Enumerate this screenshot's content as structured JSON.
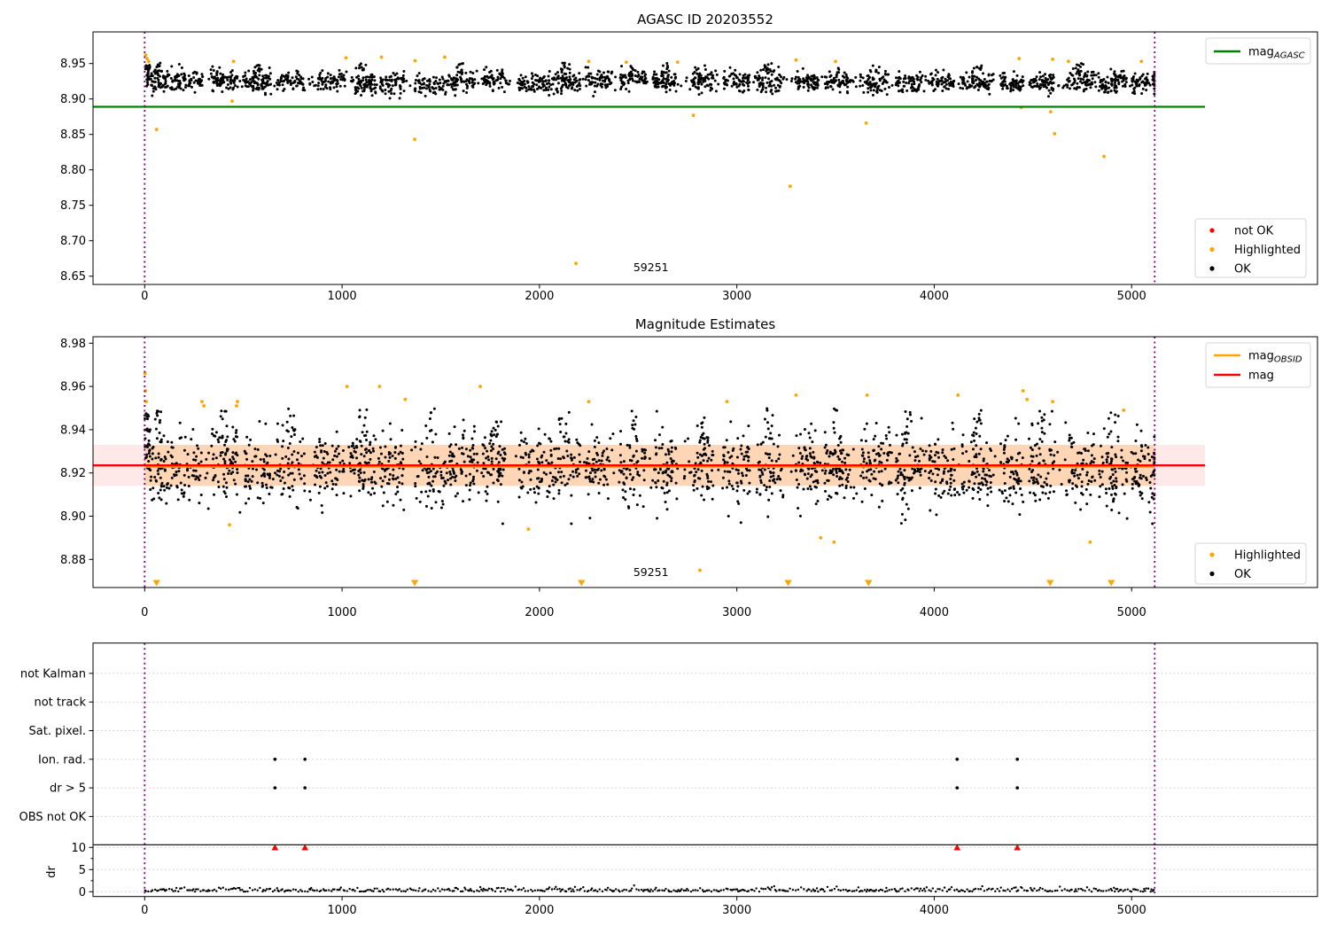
{
  "figure": {
    "titles": {
      "top": "AGASC ID 20203552",
      "middle": "Magnitude Estimates"
    }
  },
  "colors": {
    "ok": "#000000",
    "highlighted": "#ffa500",
    "not_ok": "#ff0000",
    "mag_agasc_line": "#008000",
    "mag_line": "#ff0000",
    "obsid_line": "#ffa500",
    "obsid_vline": "#800080",
    "band_outer": "rgba(255,0,0,0.09)",
    "band_inner": "rgba(255,150,0,0.22)",
    "grid_dotted": "#c9c9c9",
    "spine": "#000000",
    "annotation_text": "#262626"
  },
  "chart_data": [
    {
      "id": "agasc-mag-panel",
      "type": "scatter",
      "title": "AGASC ID 20203552",
      "xlim": [
        -262,
        5941
      ],
      "ylim": [
        8.638,
        8.995
      ],
      "xticks": [
        0,
        1000,
        2000,
        3000,
        4000,
        5000
      ],
      "yticks": [
        8.65,
        8.7,
        8.75,
        8.8,
        8.85,
        8.9,
        8.95
      ],
      "mag_agasc": 8.889,
      "hline_span": [
        -262,
        5372
      ],
      "obsid_vlines": [
        0,
        5117
      ],
      "annotation": {
        "text": "59251",
        "x": 2565,
        "y": 8.662
      },
      "scatter_band": {
        "center": 8.9245,
        "sigma": 0.0075,
        "min": 8.901,
        "max": 8.952,
        "x_range": [
          0,
          5117
        ]
      },
      "highlighted_high": [
        [
          5,
          8.962
        ],
        [
          12,
          8.957
        ],
        [
          20,
          8.953
        ],
        [
          450,
          8.953
        ],
        [
          1020,
          8.958
        ],
        [
          1200,
          8.959
        ],
        [
          1370,
          8.954
        ],
        [
          1520,
          8.959
        ],
        [
          2250,
          8.953
        ],
        [
          2440,
          8.952
        ],
        [
          2700,
          8.952
        ],
        [
          3300,
          8.955
        ],
        [
          3500,
          8.953
        ],
        [
          4430,
          8.957
        ],
        [
          4600,
          8.956
        ],
        [
          4680,
          8.953
        ],
        [
          5050,
          8.953
        ]
      ],
      "highlighted_low": [
        [
          60,
          8.857
        ],
        [
          443,
          8.897
        ],
        [
          1368,
          8.843
        ],
        [
          2185,
          8.668
        ],
        [
          2780,
          8.877
        ],
        [
          3270,
          8.777
        ],
        [
          3655,
          8.866
        ],
        [
          4440,
          8.888
        ],
        [
          4590,
          8.882
        ],
        [
          4610,
          8.851
        ],
        [
          4860,
          8.819
        ]
      ],
      "legend_line": [
        {
          "label": "mag",
          "sub": "AGASC",
          "color": "#008000",
          "type": "line"
        }
      ],
      "legend_markers": [
        {
          "label": "not OK",
          "color": "#ff0000",
          "type": "dot"
        },
        {
          "label": "Highlighted",
          "color": "#ffa500",
          "type": "dot"
        },
        {
          "label": "OK",
          "color": "#000000",
          "type": "dot"
        }
      ]
    },
    {
      "id": "mag-estimates-panel",
      "type": "scatter",
      "title": "Magnitude Estimates",
      "xlim": [
        -262,
        5941
      ],
      "ylim": [
        8.865,
        8.983
      ],
      "xticks": [
        0,
        1000,
        2000,
        3000,
        4000,
        5000
      ],
      "yticks": [
        8.88,
        8.9,
        8.92,
        8.94,
        8.96,
        8.98
      ],
      "mag": 8.9235,
      "mag_err_band": [
        8.914,
        8.933
      ],
      "hline_span": [
        -262,
        5372
      ],
      "obsid_band_range": [
        0,
        5117
      ],
      "obsid_vlines": [
        0,
        5117
      ],
      "annotation": {
        "text": "59251",
        "x": 2565,
        "y": 8.874
      },
      "scatter_band": {
        "center": 8.9225,
        "sigma": 0.0085,
        "min": 8.8965,
        "max": 8.9485,
        "x_range": [
          0,
          5117
        ]
      },
      "highlighted_high": [
        [
          2,
          8.966
        ],
        [
          4,
          8.958
        ],
        [
          8,
          8.953
        ],
        [
          290,
          8.953
        ],
        [
          300,
          8.951
        ],
        [
          465,
          8.951
        ],
        [
          470,
          8.953
        ],
        [
          1025,
          8.96
        ],
        [
          1190,
          8.96
        ],
        [
          1320,
          8.954
        ],
        [
          1700,
          8.96
        ],
        [
          2250,
          8.953
        ],
        [
          2950,
          8.953
        ],
        [
          3300,
          8.956
        ],
        [
          3660,
          8.956
        ],
        [
          4120,
          8.956
        ],
        [
          4450,
          8.958
        ],
        [
          4470,
          8.954
        ],
        [
          4600,
          8.953
        ],
        [
          4960,
          8.949
        ]
      ],
      "highlighted_low": [
        [
          430,
          8.896
        ],
        [
          1944,
          8.894
        ],
        [
          2813,
          8.875
        ],
        [
          3425,
          8.89
        ],
        [
          3492,
          8.888
        ],
        [
          4790,
          8.888
        ]
      ],
      "clipped_low_x": [
        60,
        1368,
        2213,
        3260,
        3667,
        4587,
        4897
      ],
      "legend_line": [
        {
          "label": "mag",
          "sub": "OBSID",
          "color": "#ffa500",
          "type": "line"
        },
        {
          "label": "mag",
          "sub": "",
          "color": "#ff0000",
          "type": "line"
        }
      ],
      "legend_markers": [
        {
          "label": "Highlighted",
          "color": "#ffa500",
          "type": "dot"
        },
        {
          "label": "OK",
          "color": "#000000",
          "type": "dot"
        }
      ]
    },
    {
      "id": "flags-dr-panel",
      "type": "flags+dr",
      "categories": [
        "not Kalman",
        "not track",
        "Sat. pixel.",
        "Ion. rad.",
        "dr > 5",
        "OBS not OK"
      ],
      "flag_points": {
        "Ion. rad.": [
          660,
          812,
          4116,
          4421
        ],
        "dr > 5": [
          660,
          812,
          4116,
          4421
        ]
      },
      "dr_ylabel": "dr",
      "dr_yticks": [
        0,
        5,
        10
      ],
      "dr_band": {
        "center": 0.38,
        "sigma": 0.3,
        "max": 2.2,
        "x_range": [
          0,
          5117
        ]
      },
      "dr_not_ok_clipped_x": [
        660,
        812,
        4116,
        4421
      ],
      "xticks": [
        0,
        1000,
        2000,
        3000,
        4000,
        5000
      ],
      "obsid_vlines": [
        0,
        5117
      ]
    }
  ]
}
